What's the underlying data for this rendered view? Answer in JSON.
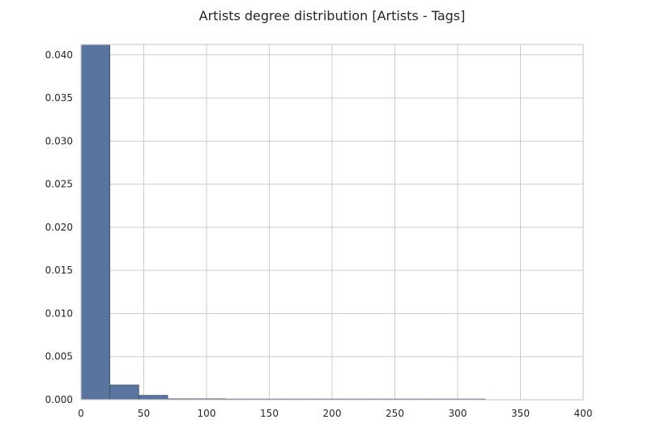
{
  "chart_data": {
    "type": "bar",
    "title": "Artists degree distribution [Artists - Tags]",
    "xlabel": "",
    "ylabel": "",
    "xlim": [
      0,
      400
    ],
    "ylim": [
      0,
      0.0412
    ],
    "x_ticks": [
      0,
      50,
      100,
      150,
      200,
      250,
      300,
      350,
      400
    ],
    "x_tick_labels": [
      "0",
      "50",
      "100",
      "150",
      "200",
      "250",
      "300",
      "350",
      "400"
    ],
    "y_ticks": [
      0,
      0.005,
      0.01,
      0.015,
      0.02,
      0.025,
      0.03,
      0.035,
      0.04
    ],
    "y_tick_labels": [
      "0.000",
      "0.005",
      "0.010",
      "0.015",
      "0.020",
      "0.025",
      "0.030",
      "0.035",
      "0.040"
    ],
    "grid": true,
    "bins": [
      {
        "x0": 0,
        "x1": 23,
        "value": 0.0412
      },
      {
        "x0": 23,
        "x1": 46,
        "value": 0.0017
      },
      {
        "x0": 46,
        "x1": 69,
        "value": 0.0005
      },
      {
        "x0": 69,
        "x1": 92,
        "value": 0.0001
      },
      {
        "x0": 92,
        "x1": 115,
        "value": 0.0001
      },
      {
        "x0": 115,
        "x1": 138,
        "value": 3e-05
      },
      {
        "x0": 138,
        "x1": 161,
        "value": 3e-05
      },
      {
        "x0": 161,
        "x1": 184,
        "value": 2e-05
      },
      {
        "x0": 184,
        "x1": 207,
        "value": 2e-05
      },
      {
        "x0": 207,
        "x1": 230,
        "value": 2e-05
      },
      {
        "x0": 230,
        "x1": 253,
        "value": 1e-05
      },
      {
        "x0": 253,
        "x1": 276,
        "value": 1e-05
      },
      {
        "x0": 276,
        "x1": 299,
        "value": 1e-05
      },
      {
        "x0": 299,
        "x1": 322,
        "value": 1e-05
      }
    ]
  }
}
